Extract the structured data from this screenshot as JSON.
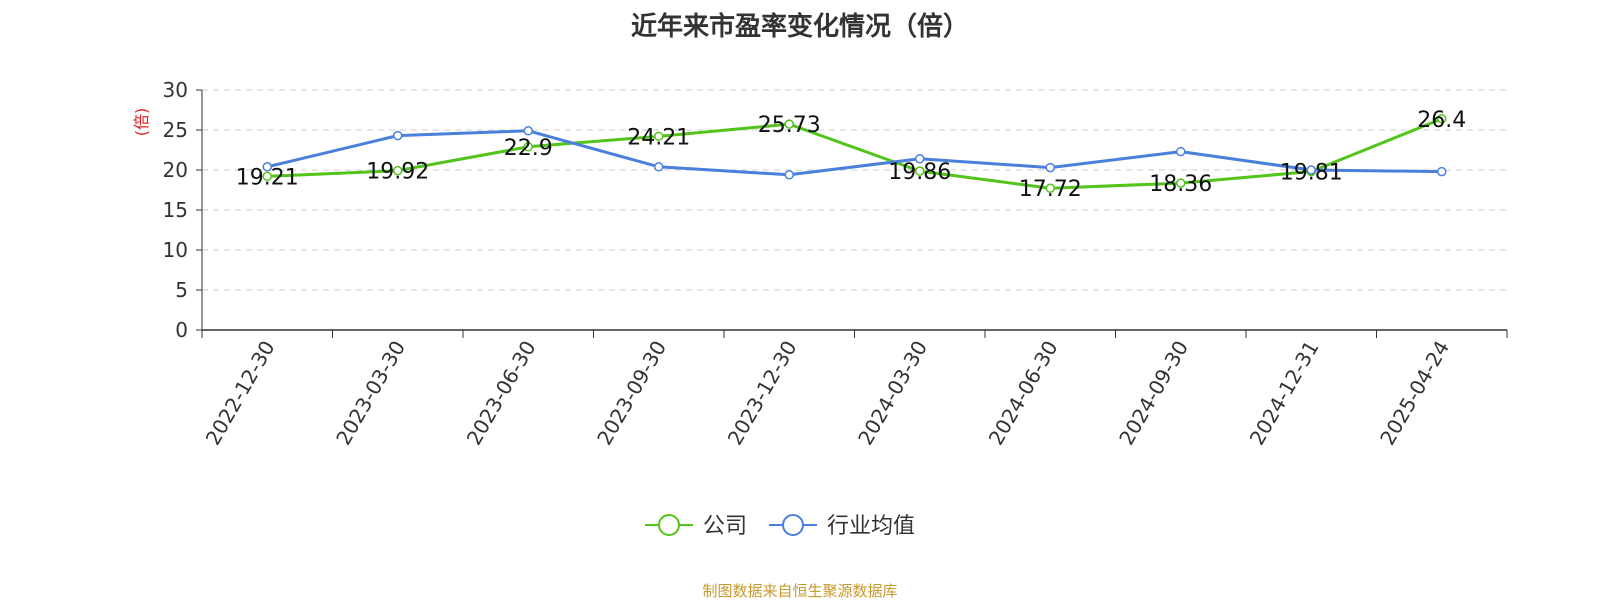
{
  "chart_data": {
    "type": "line",
    "title": "近年来市盈率变化情况（倍）",
    "y_unit": "(倍)",
    "categories": [
      "2022-12-30",
      "2023-03-30",
      "2023-06-30",
      "2023-09-30",
      "2023-12-30",
      "2024-03-30",
      "2024-06-30",
      "2024-09-30",
      "2024-12-31",
      "2025-04-24"
    ],
    "series": [
      {
        "name": "公司",
        "color": "#52c41a",
        "values": [
          19.21,
          19.92,
          22.9,
          24.21,
          25.73,
          19.86,
          17.72,
          18.36,
          19.81,
          26.4
        ],
        "labels": [
          "19.21",
          "19.92",
          "22.9",
          "24.21",
          "25.73",
          "19.86",
          "17.72",
          "18.36",
          "19.81",
          "26.4"
        ]
      },
      {
        "name": "行业均值",
        "color": "#4a7fdb",
        "values": [
          20.4,
          24.3,
          24.9,
          20.4,
          19.4,
          21.4,
          20.3,
          22.3,
          20.0,
          19.8
        ]
      }
    ],
    "ylim": [
      0,
      30
    ],
    "yticks": [
      0,
      5,
      10,
      15,
      20,
      25,
      30
    ],
    "grid": true,
    "legend_position": "bottom-center",
    "unit_color": "#e02020"
  },
  "source": "制图数据来自恒生聚源数据库"
}
